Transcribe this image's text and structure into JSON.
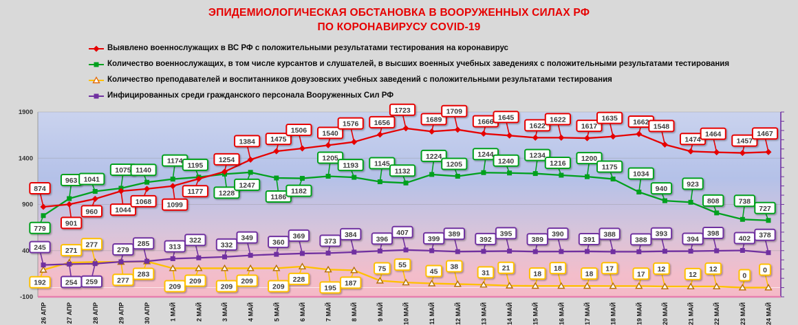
{
  "title": {
    "line1": "ЭПИДЕМИОЛОГИЧЕСКАЯ ОБСТАНОВКА В ВООРУЖЕННЫХ СИЛАХ РФ",
    "line2": "ПО КОРОНАВИРУСУ COVID-19",
    "color": "#e60000"
  },
  "colors": {
    "page_background": "#d9d9d9",
    "axis_line_bottom": "#e67fae",
    "plot_border_right": "#7030a0",
    "gridline": "#8a8a8a",
    "zero_line": "#ffffff",
    "callout_fill": "#ffffff",
    "callout_text": "#3d3d3d",
    "tick_text": "#333333"
  },
  "chart_data": {
    "type": "line",
    "title": "ЭПИДЕМИОЛОГИЧЕСКАЯ ОБСТАНОВКА В ВООРУЖЕННЫХ СИЛАХ РФ ПО КОРОНАВИРУСУ COVID-19",
    "ylim": [
      -100,
      1900
    ],
    "y_ticks": [
      1900,
      1400,
      900,
      400,
      -100
    ],
    "grid": "faint horizontal gridlines, right border with minor ticks every 100",
    "legend_position": "top-left",
    "plot_bg_gradient": [
      "#cad3ee",
      "#b4c1e8",
      "#d9c4da",
      "#f3bdca",
      "#f4bac7"
    ],
    "categories": [
      "26 АПР",
      "27 АПР",
      "28 АПР",
      "29 АПР",
      "30 АПР",
      "1 МАЙ",
      "2 МАЙ",
      "3 МАЙ",
      "4 МАЙ",
      "5 МАЙ",
      "6 МАЙ",
      "7 МАЙ",
      "8 МАЙ",
      "9 МАЙ",
      "10 МАЙ",
      "11 МАЙ",
      "12 МАЙ",
      "13 МАЙ",
      "14 МАЙ",
      "15 МАЙ",
      "16 МАЙ",
      "17 МАЙ",
      "18 МАЙ",
      "19 МАЙ",
      "20 МАЙ",
      "21 МАЙ",
      "22 МАЙ",
      "23 МАЙ",
      "24 МАЙ"
    ],
    "series": [
      {
        "name": "Выявлено военнослужащих в ВС РФ с положительными результатами тестирования на коронавирус",
        "color": "#e60000",
        "marker": "diamond",
        "values": [
          874,
          901,
          960,
          1044,
          1068,
          1099,
          1177,
          1254,
          1384,
          1475,
          1506,
          1540,
          1576,
          1656,
          1723,
          1689,
          1709,
          1666,
          1645,
          1622,
          1622,
          1617,
          1635,
          1662,
          1548,
          1474,
          1464,
          1457,
          1467
        ],
        "label_below_indices": [
          1,
          2,
          3,
          4,
          5,
          6
        ]
      },
      {
        "name": "Количество военнослужащих, в том числе курсантов и слушателей, в высших военных учебных заведениях с положительными результатами тестирования",
        "color": "#00a01e",
        "marker": "square",
        "values": [
          779,
          963,
          1041,
          1075,
          1140,
          1174,
          1195,
          1228,
          1247,
          1186,
          1182,
          1205,
          1193,
          1145,
          1132,
          1224,
          1205,
          1244,
          1240,
          1234,
          1216,
          1200,
          1175,
          1034,
          940,
          923,
          808,
          738,
          727
        ],
        "label_below_indices": [
          0,
          7,
          8,
          9,
          10
        ]
      },
      {
        "name": "Количество преподавателей и воспитанников довузовских учебных заведений с положительными результатами тестирования",
        "color": "#ffc000",
        "marker": "triangle-open",
        "values": [
          192,
          271,
          277,
          277,
          283,
          209,
          209,
          209,
          209,
          209,
          228,
          195,
          187,
          75,
          55,
          45,
          38,
          31,
          21,
          18,
          18,
          18,
          17,
          17,
          12,
          12,
          12,
          0,
          0
        ],
        "label_below_indices": [
          0,
          3,
          4,
          5,
          6,
          7,
          8,
          9,
          10,
          11,
          12
        ]
      },
      {
        "name": "Инфицированных среди гражданского персонала Вооруженных Сил РФ",
        "color": "#7030a0",
        "marker": "square",
        "values": [
          245,
          254,
          259,
          279,
          285,
          313,
          322,
          332,
          349,
          360,
          369,
          373,
          384,
          396,
          407,
          399,
          389,
          392,
          395,
          389,
          390,
          391,
          388,
          388,
          393,
          394,
          398,
          402,
          378
        ],
        "label_below_indices": [
          1,
          2
        ]
      }
    ]
  }
}
